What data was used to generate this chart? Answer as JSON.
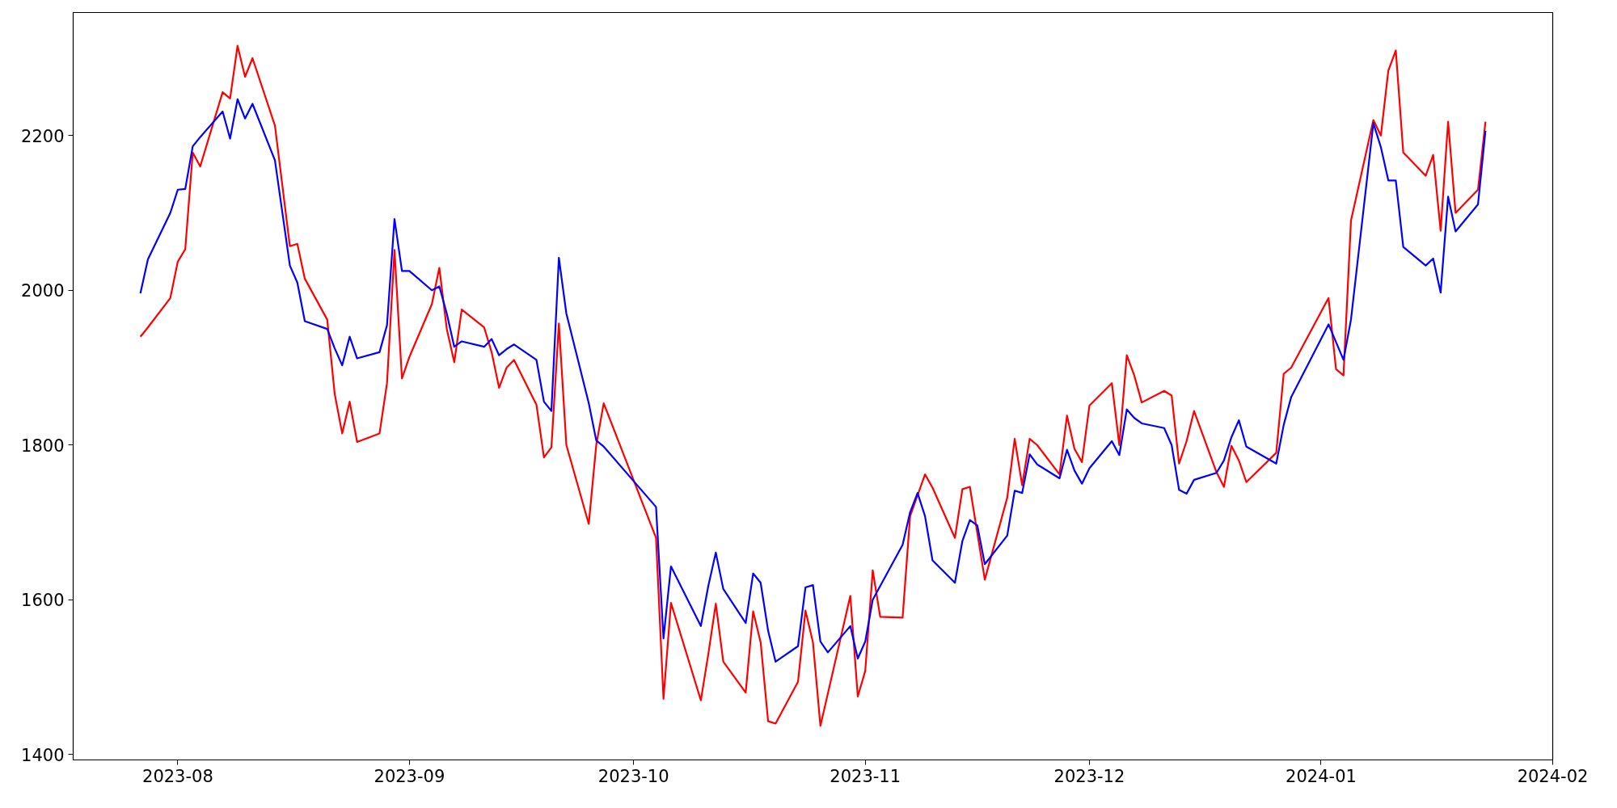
{
  "chart_data": {
    "type": "line",
    "xlim": [
      "2023-07-18",
      "2024-02-01"
    ],
    "ylim": [
      1393,
      2359
    ],
    "xticks": [
      {
        "value": "2023-08-01",
        "label": "2023-08"
      },
      {
        "value": "2023-09-01",
        "label": "2023-09"
      },
      {
        "value": "2023-10-01",
        "label": "2023-10"
      },
      {
        "value": "2023-11-01",
        "label": "2023-11"
      },
      {
        "value": "2023-12-01",
        "label": "2023-12"
      },
      {
        "value": "2024-01-01",
        "label": "2024-01"
      },
      {
        "value": "2024-02-01",
        "label": "2024-02"
      }
    ],
    "yticks": [
      1400,
      1600,
      1800,
      2000,
      2200
    ],
    "grid": false,
    "marker": "none",
    "line_style": "solid",
    "series": [
      {
        "color": "#ff0000",
        "x": [
          "2023-07-27",
          "2023-07-28",
          "2023-07-31",
          "2023-08-01",
          "2023-08-02",
          "2023-08-03",
          "2023-08-04",
          "2023-08-07",
          "2023-08-08",
          "2023-08-09",
          "2023-08-10",
          "2023-08-11",
          "2023-08-14",
          "2023-08-16",
          "2023-08-17",
          "2023-08-18",
          "2023-08-21",
          "2023-08-22",
          "2023-08-23",
          "2023-08-24",
          "2023-08-25",
          "2023-08-28",
          "2023-08-29",
          "2023-08-30",
          "2023-08-31",
          "2023-09-01",
          "2023-09-04",
          "2023-09-05",
          "2023-09-06",
          "2023-09-07",
          "2023-09-08",
          "2023-09-11",
          "2023-09-12",
          "2023-09-13",
          "2023-09-14",
          "2023-09-15",
          "2023-09-18",
          "2023-09-19",
          "2023-09-20",
          "2023-09-21",
          "2023-09-22",
          "2023-09-25",
          "2023-09-26",
          "2023-09-27",
          "2023-10-04",
          "2023-10-05",
          "2023-10-06",
          "2023-10-10",
          "2023-10-11",
          "2023-10-12",
          "2023-10-13",
          "2023-10-16",
          "2023-10-17",
          "2023-10-18",
          "2023-10-19",
          "2023-10-20",
          "2023-10-23",
          "2023-10-24",
          "2023-10-25",
          "2023-10-26",
          "2023-10-30",
          "2023-10-31",
          "2023-11-01",
          "2023-11-02",
          "2023-11-03",
          "2023-11-06",
          "2023-11-07",
          "2023-11-09",
          "2023-11-10",
          "2023-11-13",
          "2023-11-14",
          "2023-11-15",
          "2023-11-17",
          "2023-11-20",
          "2023-11-21",
          "2023-11-22",
          "2023-11-23",
          "2023-11-24",
          "2023-11-27",
          "2023-11-28",
          "2023-11-29",
          "2023-11-30",
          "2023-12-01",
          "2023-12-04",
          "2023-12-05",
          "2023-12-06",
          "2023-12-07",
          "2023-12-08",
          "2023-12-11",
          "2023-12-12",
          "2023-12-13",
          "2023-12-14",
          "2023-12-15",
          "2023-12-18",
          "2023-12-19",
          "2023-12-20",
          "2023-12-21",
          "2023-12-22",
          "2023-12-26",
          "2023-12-27",
          "2023-12-28",
          "2024-01-02",
          "2024-01-03",
          "2024-01-04",
          "2024-01-05",
          "2024-01-08",
          "2024-01-09",
          "2024-01-10",
          "2024-01-11",
          "2024-01-12",
          "2024-01-15",
          "2024-01-16",
          "2024-01-17",
          "2024-01-18",
          "2024-01-19",
          "2024-01-22",
          "2024-01-23"
        ],
        "values": [
          1940,
          1952,
          1990,
          2037,
          2053,
          2178,
          2160,
          2256,
          2248,
          2316,
          2276,
          2300,
          2213,
          2057,
          2060,
          2015,
          1962,
          1866,
          1815,
          1856,
          1804,
          1815,
          1880,
          2052,
          1886,
          1914,
          1982,
          2029,
          1950,
          1907,
          1975,
          1952,
          1920,
          1874,
          1900,
          1910,
          1852,
          1784,
          1797,
          1957,
          1800,
          1698,
          1800,
          1854,
          1680,
          1472,
          1596,
          1470,
          1530,
          1595,
          1520,
          1480,
          1585,
          1545,
          1443,
          1440,
          1494,
          1586,
          1545,
          1437,
          1605,
          1475,
          1508,
          1638,
          1578,
          1577,
          1708,
          1762,
          1745,
          1680,
          1743,
          1746,
          1626,
          1732,
          1808,
          1748,
          1808,
          1800,
          1762,
          1838,
          1795,
          1778,
          1851,
          1880,
          1800,
          1916,
          1890,
          1855,
          1870,
          1864,
          1776,
          1805,
          1844,
          1765,
          1746,
          1799,
          1780,
          1752,
          1790,
          1892,
          1900,
          1990,
          1898,
          1890,
          2090,
          2220,
          2200,
          2284,
          2310,
          2178,
          2148,
          2175,
          2077,
          2218,
          2100,
          2130,
          2218
        ]
      },
      {
        "color": "#0000ff",
        "x": [
          "2023-07-27",
          "2023-07-28",
          "2023-07-31",
          "2023-08-01",
          "2023-08-02",
          "2023-08-03",
          "2023-08-04",
          "2023-08-07",
          "2023-08-08",
          "2023-08-09",
          "2023-08-10",
          "2023-08-11",
          "2023-08-14",
          "2023-08-16",
          "2023-08-17",
          "2023-08-18",
          "2023-08-21",
          "2023-08-22",
          "2023-08-23",
          "2023-08-24",
          "2023-08-25",
          "2023-08-28",
          "2023-08-29",
          "2023-08-30",
          "2023-08-31",
          "2023-09-01",
          "2023-09-04",
          "2023-09-05",
          "2023-09-06",
          "2023-09-07",
          "2023-09-08",
          "2023-09-11",
          "2023-09-12",
          "2023-09-13",
          "2023-09-14",
          "2023-09-15",
          "2023-09-18",
          "2023-09-19",
          "2023-09-20",
          "2023-09-21",
          "2023-09-22",
          "2023-09-25",
          "2023-09-26",
          "2023-09-27",
          "2023-10-04",
          "2023-10-05",
          "2023-10-06",
          "2023-10-10",
          "2023-10-11",
          "2023-10-12",
          "2023-10-13",
          "2023-10-16",
          "2023-10-17",
          "2023-10-18",
          "2023-10-19",
          "2023-10-20",
          "2023-10-23",
          "2023-10-24",
          "2023-10-25",
          "2023-10-26",
          "2023-10-27",
          "2023-10-30",
          "2023-10-31",
          "2023-11-01",
          "2023-11-02",
          "2023-11-06",
          "2023-11-07",
          "2023-11-08",
          "2023-11-09",
          "2023-11-10",
          "2023-11-13",
          "2023-11-14",
          "2023-11-15",
          "2023-11-16",
          "2023-11-17",
          "2023-11-20",
          "2023-11-21",
          "2023-11-22",
          "2023-11-23",
          "2023-11-24",
          "2023-11-27",
          "2023-11-28",
          "2023-11-29",
          "2023-11-30",
          "2023-12-01",
          "2023-12-04",
          "2023-12-05",
          "2023-12-06",
          "2023-12-07",
          "2023-12-08",
          "2023-12-11",
          "2023-12-12",
          "2023-12-13",
          "2023-12-14",
          "2023-12-15",
          "2023-12-18",
          "2023-12-19",
          "2023-12-20",
          "2023-12-21",
          "2023-12-22",
          "2023-12-26",
          "2023-12-27",
          "2023-12-28",
          "2024-01-02",
          "2024-01-04",
          "2024-01-05",
          "2024-01-08",
          "2024-01-09",
          "2024-01-10",
          "2024-01-11",
          "2024-01-12",
          "2024-01-15",
          "2024-01-16",
          "2024-01-17",
          "2024-01-18",
          "2024-01-19",
          "2024-01-22",
          "2024-01-23"
        ],
        "values": [
          1996,
          2040,
          2100,
          2130,
          2131,
          2186,
          2198,
          2231,
          2196,
          2247,
          2222,
          2241,
          2168,
          2032,
          2010,
          1960,
          1950,
          1925,
          1903,
          1940,
          1912,
          1920,
          1955,
          2092,
          2025,
          2025,
          2000,
          2005,
          1970,
          1927,
          1934,
          1927,
          1937,
          1916,
          1924,
          1930,
          1910,
          1856,
          1844,
          2042,
          1970,
          1854,
          1806,
          1798,
          1720,
          1550,
          1643,
          1566,
          1618,
          1661,
          1614,
          1570,
          1634,
          1622,
          1560,
          1520,
          1540,
          1616,
          1619,
          1546,
          1532,
          1566,
          1524,
          1546,
          1600,
          1671,
          1713,
          1738,
          1708,
          1651,
          1622,
          1676,
          1703,
          1696,
          1646,
          1683,
          1741,
          1738,
          1788,
          1775,
          1757,
          1794,
          1767,
          1750,
          1770,
          1805,
          1787,
          1846,
          1835,
          1828,
          1822,
          1800,
          1742,
          1737,
          1755,
          1764,
          1780,
          1810,
          1832,
          1798,
          1776,
          1826,
          1862,
          1956,
          1910,
          1962,
          2216,
          2185,
          2142,
          2142,
          2056,
          2032,
          2041,
          1997,
          2121,
          2076,
          2111,
          2206
        ]
      }
    ]
  }
}
